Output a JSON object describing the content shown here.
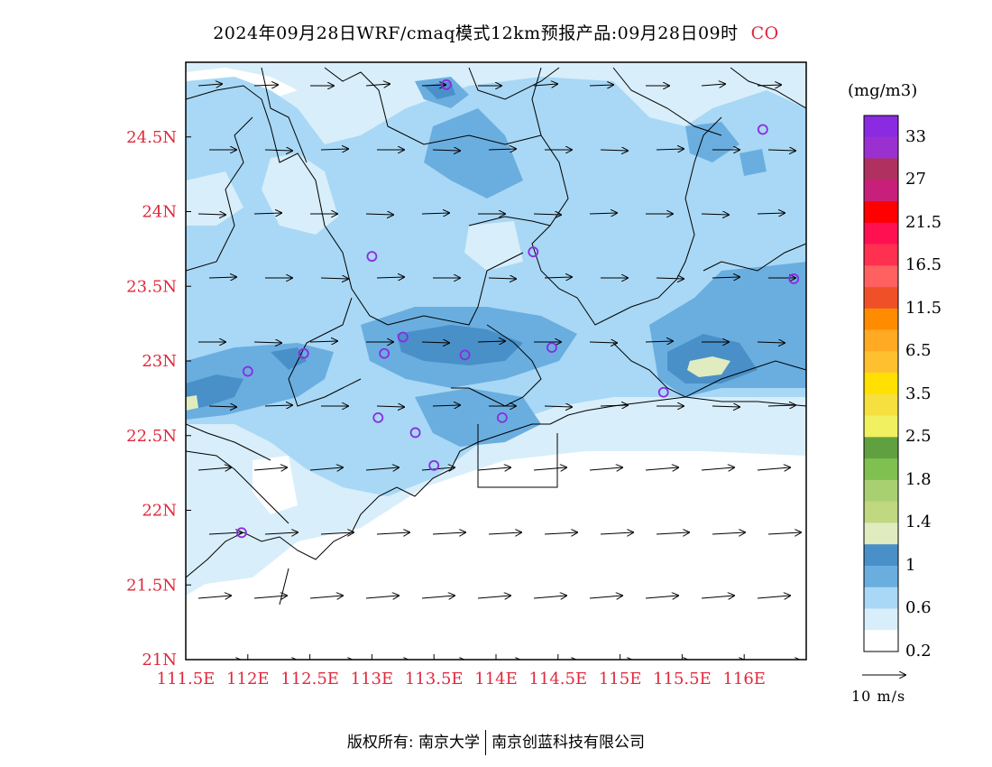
{
  "header": {
    "title": "2024年09月28日WRF/cmaq模式12km预报产品:09月28日09时",
    "species": "CO"
  },
  "axes": {
    "lon_labels": [
      "111.5E",
      "112E",
      "112.5E",
      "113E",
      "113.5E",
      "114E",
      "114.5E",
      "115E",
      "115.5E",
      "116E"
    ],
    "lat_labels": [
      "24.5N",
      "24N",
      "23.5N",
      "23N",
      "22.5N",
      "22N",
      "21.5N",
      "21N"
    ],
    "lon_values": [
      111.5,
      112,
      112.5,
      113,
      113.5,
      114,
      114.5,
      115,
      115.5,
      116
    ],
    "lat_values": [
      24.5,
      24,
      23.5,
      23,
      22.5,
      22,
      21.5,
      21
    ],
    "lon_range": [
      111.5,
      116.5
    ],
    "lat_range": [
      21,
      25
    ]
  },
  "colorbar": {
    "unit": "(mg/m3)",
    "labels": [
      "33",
      "27",
      "21.5",
      "16.5",
      "11.5",
      "6.5",
      "3.5",
      "2.5",
      "1.8",
      "1.4",
      "1",
      "0.6",
      "0.2"
    ],
    "colors": [
      "#8a2be2",
      "#9b30d0",
      "#b03060",
      "#c8207a",
      "#ff0000",
      "#ff1050",
      "#ff3050",
      "#ff6060",
      "#f05028",
      "#ff8c00",
      "#ffaa22",
      "#ffc030",
      "#ffe000",
      "#f5e040",
      "#f0f060",
      "#60a040",
      "#80c050",
      "#a8d070",
      "#c0d880",
      "#e0ecc0",
      "#4a90c8",
      "#6aaee0",
      "#a8d8f5",
      "#d8eefa",
      "#ffffff"
    ]
  },
  "vector_legend": {
    "label": "10 m/s"
  },
  "stations": [
    {
      "lon": 113.6,
      "lat": 24.85
    },
    {
      "lon": 116.15,
      "lat": 24.55
    },
    {
      "lon": 114.3,
      "lat": 23.73
    },
    {
      "lon": 113.0,
      "lat": 23.7
    },
    {
      "lon": 116.4,
      "lat": 23.55
    },
    {
      "lon": 113.25,
      "lat": 23.16
    },
    {
      "lon": 113.1,
      "lat": 23.05
    },
    {
      "lon": 113.75,
      "lat": 23.04
    },
    {
      "lon": 114.45,
      "lat": 23.09
    },
    {
      "lon": 112.45,
      "lat": 23.05
    },
    {
      "lon": 112.0,
      "lat": 22.93
    },
    {
      "lon": 115.35,
      "lat": 22.79
    },
    {
      "lon": 114.05,
      "lat": 22.62
    },
    {
      "lon": 113.05,
      "lat": 22.62
    },
    {
      "lon": 113.35,
      "lat": 22.52
    },
    {
      "lon": 113.5,
      "lat": 22.3
    },
    {
      "lon": 111.95,
      "lat": 21.85
    }
  ],
  "footer": {
    "copyright": "版权所有: 南京大学",
    "company": "南京创蓝科技有限公司"
  }
}
